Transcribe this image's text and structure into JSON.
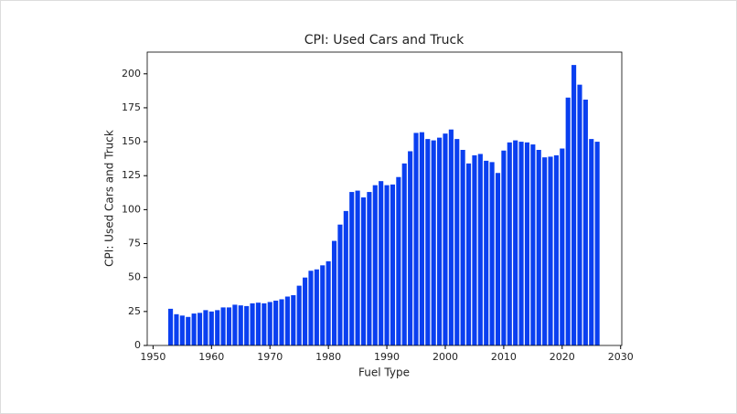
{
  "chart_data": {
    "type": "bar",
    "title": "CPI: Used Cars and Truck",
    "x_label": "Fuel Type",
    "y_label": "CPI: Used Cars and Truck",
    "x": [
      1953,
      1954,
      1955,
      1956,
      1957,
      1958,
      1959,
      1960,
      1961,
      1962,
      1963,
      1964,
      1965,
      1966,
      1967,
      1968,
      1969,
      1970,
      1971,
      1972,
      1973,
      1974,
      1975,
      1976,
      1977,
      1978,
      1979,
      1980,
      1981,
      1982,
      1983,
      1984,
      1985,
      1986,
      1987,
      1988,
      1989,
      1990,
      1991,
      1992,
      1993,
      1994,
      1995,
      1996,
      1997,
      1998,
      1999,
      2000,
      2001,
      2002,
      2003,
      2004,
      2005,
      2006,
      2007,
      2008,
      2009,
      2010,
      2011,
      2012,
      2013,
      2014,
      2015,
      2016,
      2017,
      2018,
      2019,
      2020,
      2021,
      2022,
      2023,
      2024,
      2025,
      2026
    ],
    "values": [
      27,
      23,
      22,
      21,
      23.5,
      24,
      26,
      25,
      26,
      28,
      28,
      30,
      29.5,
      29,
      31,
      31.5,
      31,
      32,
      33,
      34,
      36,
      37,
      44,
      50,
      55,
      56,
      59,
      62,
      77,
      89,
      99,
      113,
      114,
      109,
      113,
      118,
      121,
      118,
      118.5,
      124,
      134,
      143,
      156.5,
      157,
      152,
      151,
      153,
      156,
      159,
      152,
      144,
      134,
      140,
      141,
      136,
      135,
      127,
      143.5,
      149.5,
      151,
      150,
      149.5,
      148,
      144,
      138.5,
      139,
      140,
      145,
      182.5,
      206.5,
      192,
      181,
      152,
      150
    ],
    "color": "#0a3ff0",
    "xlim": [
      1949,
      2030.2
    ],
    "xticks": [
      1950,
      1960,
      1970,
      1980,
      1990,
      2000,
      2010,
      2020,
      2030
    ],
    "ylim": [
      0,
      216
    ],
    "yticks": [
      0,
      25,
      50,
      75,
      100,
      125,
      150,
      175,
      200
    ]
  }
}
